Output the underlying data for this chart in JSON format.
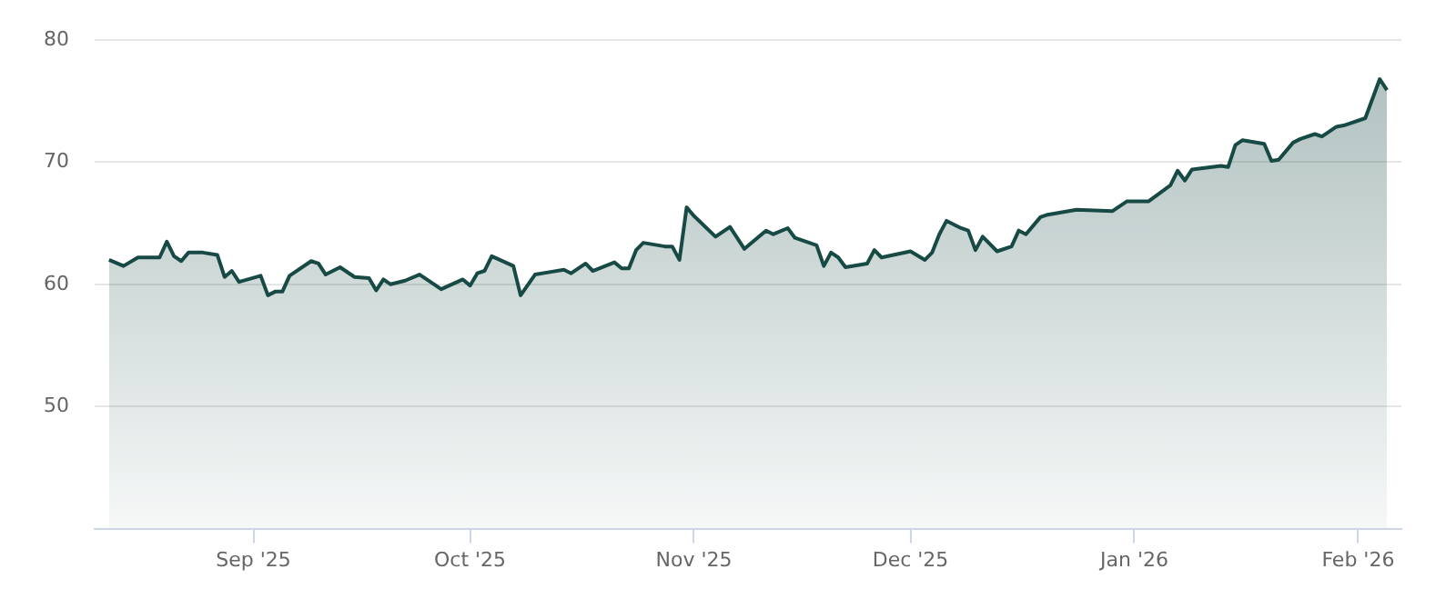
{
  "chart_data": {
    "type": "area",
    "xlim": [
      "2025-08-10",
      "2026-02-07"
    ],
    "ylim": [
      40,
      80
    ],
    "yticks": [
      50,
      60,
      70,
      80
    ],
    "xticks": [
      {
        "value": "2025-09-01",
        "label": "Sep '25"
      },
      {
        "value": "2025-10-01",
        "label": "Oct '25"
      },
      {
        "value": "2025-11-01",
        "label": "Nov '25"
      },
      {
        "value": "2025-12-01",
        "label": "Dec '25"
      },
      {
        "value": "2026-01-01",
        "label": "Jan '26"
      },
      {
        "value": "2026-02-01",
        "label": "Feb '26"
      }
    ],
    "grid": "y",
    "legend": false,
    "marker": "none",
    "line_style": "solid",
    "series": [
      {
        "color": "#174a45",
        "x": [
          "2025-08-12",
          "2025-08-14",
          "2025-08-16",
          "2025-08-19",
          "2025-08-20",
          "2025-08-21",
          "2025-08-22",
          "2025-08-23",
          "2025-08-25",
          "2025-08-27",
          "2025-08-28",
          "2025-08-29",
          "2025-08-30",
          "2025-09-02",
          "2025-09-03",
          "2025-09-04",
          "2025-09-05",
          "2025-09-06",
          "2025-09-09",
          "2025-09-10",
          "2025-09-11",
          "2025-09-13",
          "2025-09-15",
          "2025-09-17",
          "2025-09-18",
          "2025-09-19",
          "2025-09-20",
          "2025-09-22",
          "2025-09-24",
          "2025-09-25",
          "2025-09-27",
          "2025-09-30",
          "2025-10-01",
          "2025-10-02",
          "2025-10-03",
          "2025-10-04",
          "2025-10-07",
          "2025-10-08",
          "2025-10-10",
          "2025-10-12",
          "2025-10-14",
          "2025-10-15",
          "2025-10-17",
          "2025-10-18",
          "2025-10-21",
          "2025-10-22",
          "2025-10-23",
          "2025-10-24",
          "2025-10-25",
          "2025-10-28",
          "2025-10-29",
          "2025-10-30",
          "2025-10-31",
          "2025-11-01",
          "2025-11-04",
          "2025-11-06",
          "2025-11-08",
          "2025-11-11",
          "2025-11-12",
          "2025-11-14",
          "2025-11-15",
          "2025-11-18",
          "2025-11-19",
          "2025-11-20",
          "2025-11-21",
          "2025-11-22",
          "2025-11-25",
          "2025-11-26",
          "2025-11-27",
          "2025-12-01",
          "2025-12-03",
          "2025-12-04",
          "2025-12-05",
          "2025-12-06",
          "2025-12-08",
          "2025-12-09",
          "2025-12-10",
          "2025-12-11",
          "2025-12-13",
          "2025-12-15",
          "2025-12-16",
          "2025-12-17",
          "2025-12-19",
          "2025-12-20",
          "2025-12-22",
          "2025-12-24",
          "2025-12-29",
          "2025-12-31",
          "2026-01-03",
          "2026-01-06",
          "2026-01-07",
          "2026-01-08",
          "2026-01-09",
          "2026-01-13",
          "2026-01-14",
          "2026-01-15",
          "2026-01-16",
          "2026-01-19",
          "2026-01-20",
          "2026-01-21",
          "2026-01-23",
          "2026-01-24",
          "2026-01-26",
          "2026-01-27",
          "2026-01-29",
          "2026-01-30",
          "2026-02-02",
          "2026-02-04",
          "2026-02-05"
        ],
        "values": [
          62.0,
          61.5,
          62.2,
          62.2,
          63.5,
          62.3,
          61.9,
          62.6,
          62.6,
          62.4,
          60.6,
          61.1,
          60.2,
          60.7,
          59.1,
          59.4,
          59.4,
          60.7,
          61.9,
          61.7,
          60.8,
          61.4,
          60.6,
          60.5,
          59.5,
          60.4,
          60.0,
          60.3,
          60.8,
          60.4,
          59.6,
          60.4,
          59.9,
          60.9,
          61.1,
          62.3,
          61.5,
          59.1,
          60.8,
          61.0,
          61.2,
          60.9,
          61.7,
          61.1,
          61.8,
          61.3,
          61.3,
          62.8,
          63.4,
          63.1,
          63.1,
          62.0,
          66.3,
          65.6,
          63.9,
          64.7,
          62.9,
          64.4,
          64.1,
          64.6,
          63.8,
          63.2,
          61.5,
          62.6,
          62.2,
          61.4,
          61.7,
          62.8,
          62.2,
          62.7,
          62.0,
          62.6,
          64.1,
          65.2,
          64.6,
          64.4,
          62.8,
          63.9,
          62.7,
          63.1,
          64.4,
          64.1,
          65.5,
          65.7,
          65.9,
          66.1,
          66.0,
          66.8,
          66.8,
          68.1,
          69.3,
          68.5,
          69.4,
          69.7,
          69.6,
          71.4,
          71.8,
          71.5,
          70.1,
          70.2,
          71.6,
          71.9,
          72.3,
          72.1,
          72.9,
          73.0,
          73.6,
          76.8,
          75.9
        ]
      }
    ]
  }
}
